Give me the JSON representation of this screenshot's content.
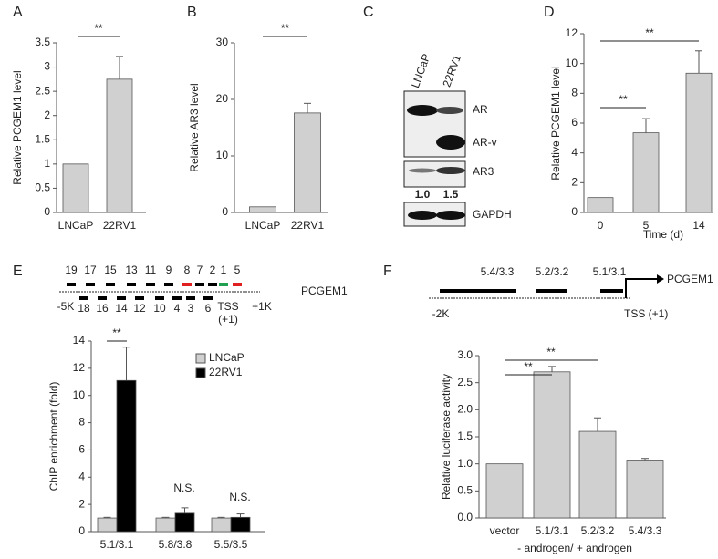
{
  "panel_labels": [
    "A",
    "B",
    "C",
    "D",
    "E",
    "F"
  ],
  "blot": {
    "lanes": [
      "LNCaP",
      "22RV1"
    ],
    "bands": [
      "AR",
      "AR-v",
      "AR3",
      "GAPDH"
    ],
    "quantification": [
      "1.0",
      "1.5"
    ]
  },
  "schematic_e": {
    "gene": "PCGEM1",
    "top_regions": [
      "19",
      "17",
      "15",
      "13",
      "11",
      "9",
      "8",
      "7",
      "2",
      "1",
      "5"
    ],
    "bottom_regions": [
      "18",
      "16",
      "14",
      "12",
      "10",
      "4",
      "3",
      "6"
    ],
    "left": "-5K",
    "tss": "TSS",
    "tss_position": "(+1)",
    "right": "+1K"
  },
  "schematic_f": {
    "gene": "PCGEM1",
    "regions": [
      "5.4/3.3",
      "5.2/3.2",
      "5.1/3.1"
    ],
    "left": "-2K",
    "tss": "TSS (+1)"
  },
  "chart_data": [
    {
      "type": "bar",
      "ylabel": "Relative PCGEM1 level",
      "categories": [
        "LNCaP",
        "22RV1"
      ],
      "values": [
        1,
        2.75
      ],
      "errors": [
        0,
        0.47
      ],
      "color": "#d0d0d0",
      "ylim": [
        0,
        3.5
      ],
      "yticks": [
        0,
        0.5,
        1,
        1.5,
        2,
        2.5,
        3,
        3.5
      ],
      "annotations": [
        "**"
      ]
    },
    {
      "type": "bar",
      "ylabel": "Relative AR3 level",
      "categories": [
        "LNCaP",
        "22RV1"
      ],
      "values": [
        1,
        17.6
      ],
      "errors": [
        0,
        1.7
      ],
      "color": "#d0d0d0",
      "ylim": [
        0,
        30
      ],
      "yticks": [
        0,
        10,
        20,
        30
      ],
      "annotations": [
        "**"
      ]
    },
    {
      "type": "bar",
      "ylabel": "Relative PCGEM1 level",
      "xlabel": "Time (d)",
      "categories": [
        "0",
        "5",
        "14"
      ],
      "values": [
        1,
        5.35,
        9.35
      ],
      "errors": [
        0,
        0.95,
        1.5
      ],
      "color": "#d0d0d0",
      "ylim": [
        0,
        12
      ],
      "yticks": [
        0,
        2,
        4,
        6,
        8,
        10,
        12
      ],
      "annotations": [
        "**",
        "**"
      ]
    },
    {
      "type": "bar",
      "ylabel": "ChIP enrichment (fold)",
      "categories": [
        "5.1/3.1",
        "5.8/3.8",
        "5.5/3.5"
      ],
      "series": [
        {
          "name": "LNCaP",
          "color": "#d0d0d0",
          "values": [
            1,
            1,
            1
          ],
          "errors": [
            0.05,
            0.05,
            0.05
          ]
        },
        {
          "name": "22RV1",
          "color": "#000000",
          "values": [
            11.1,
            1.35,
            1.05
          ],
          "errors": [
            2.45,
            0.4,
            0.25
          ]
        }
      ],
      "ylim": [
        0,
        14
      ],
      "yticks": [
        0,
        2,
        4,
        6,
        8,
        10,
        12,
        14
      ],
      "annotations": [
        "**",
        "N.S.",
        "N.S."
      ]
    },
    {
      "type": "bar",
      "ylabel": "Relative luciferase activity",
      "xlabel": "- androgen/ + androgen",
      "categories": [
        "vector",
        "5.1/3.1",
        "5.2/3.2",
        "5.4/3.3"
      ],
      "values": [
        1,
        2.7,
        1.6,
        1.07
      ],
      "errors": [
        0,
        0.1,
        0.25,
        0.03
      ],
      "color": "#d0d0d0",
      "ylim": [
        0,
        3
      ],
      "yticks": [
        {
          "value": 0,
          "label": "0.0"
        },
        {
          "value": 0.5,
          "label": "0.5"
        },
        {
          "value": 1,
          "label": "1.0"
        },
        {
          "value": 1.5,
          "label": "1.5"
        },
        {
          "value": 2,
          "label": "2.0"
        },
        {
          "value": 2.5,
          "label": "2.5"
        },
        {
          "value": 3,
          "label": "3.0"
        }
      ],
      "annotations": [
        "**",
        "**"
      ]
    }
  ]
}
